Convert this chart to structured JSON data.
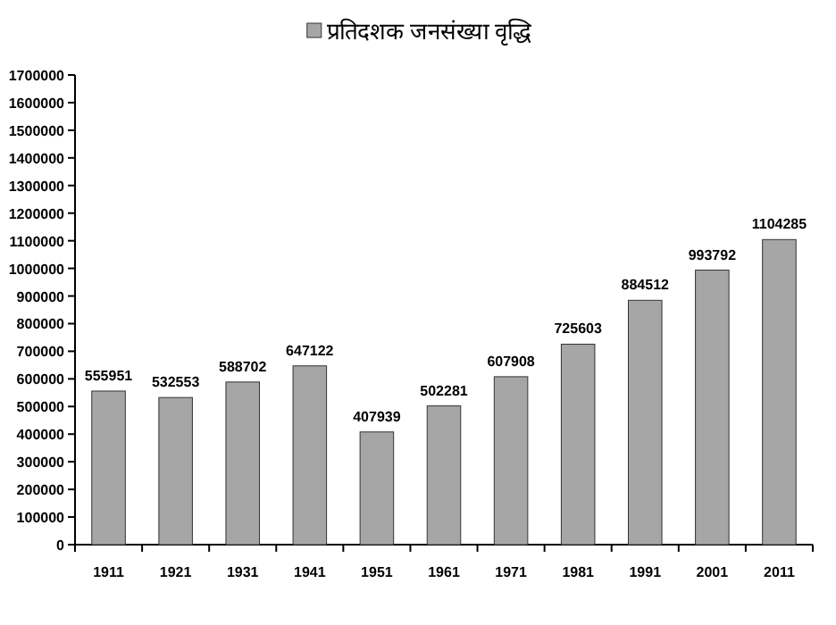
{
  "chart_data": {
    "type": "bar",
    "categories": [
      "1911",
      "1921",
      "1931",
      "1941",
      "1951",
      "1961",
      "1971",
      "1981",
      "1991",
      "2001",
      "2011"
    ],
    "series": [
      {
        "name": "प्रतिदशक जनसंख्या वृद्धि",
        "color": "#a6a6a6",
        "values": [
          555951,
          532553,
          588702,
          647122,
          407939,
          502281,
          607908,
          725603,
          884512,
          993792,
          1104285
        ]
      }
    ],
    "ylim": [
      0,
      1700000
    ],
    "yticks": [
      0,
      100000,
      200000,
      300000,
      400000,
      500000,
      600000,
      700000,
      800000,
      900000,
      1000000,
      1100000,
      1200000,
      1300000,
      1400000,
      1500000,
      1600000,
      1700000
    ],
    "data_labels": true,
    "legend": "top",
    "grid": false
  }
}
